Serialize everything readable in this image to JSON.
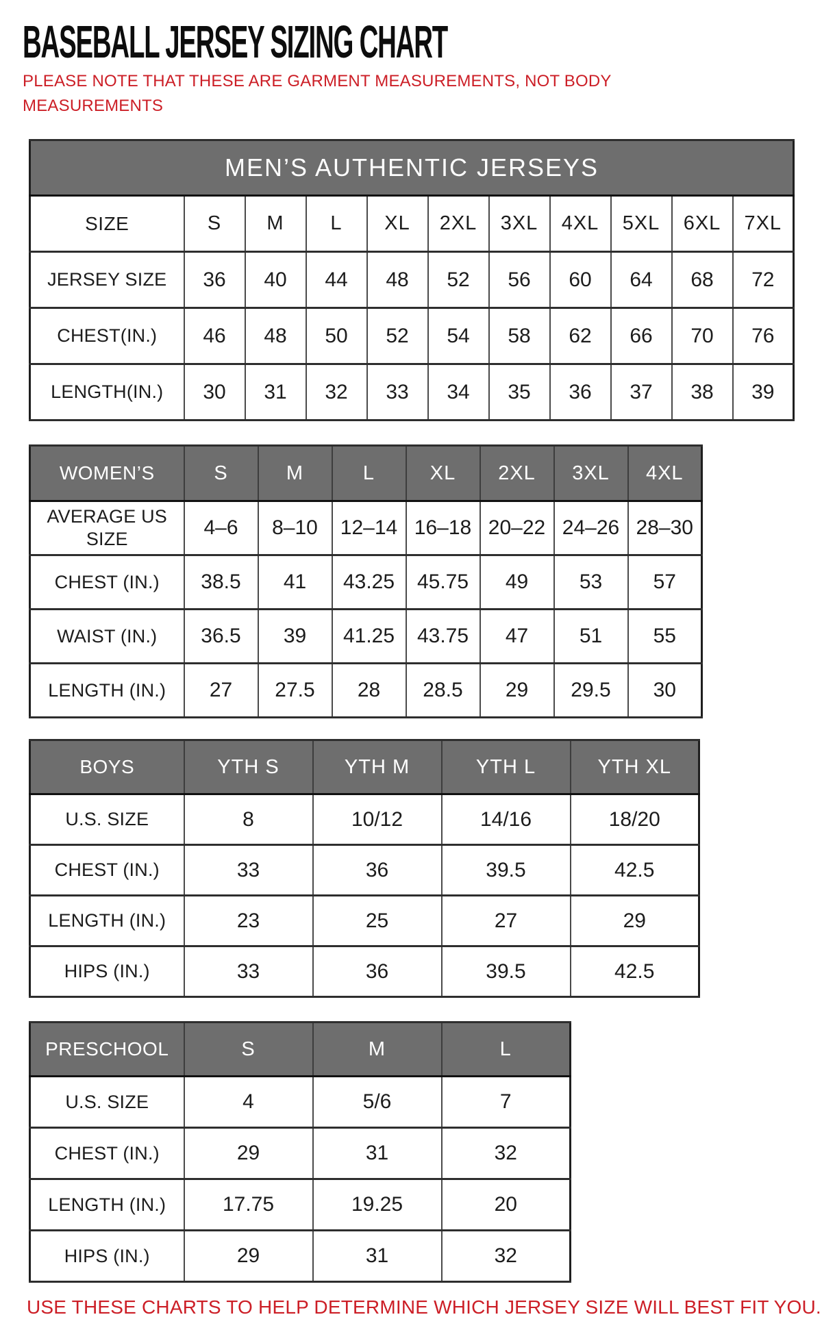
{
  "page": {
    "title": "BASEBALL JERSEY SIZING CHART",
    "note": "PLEASE NOTE THAT THESE ARE GARMENT MEASUREMENTS, NOT BODY MEASUREMENTS",
    "footer": "USE THESE CHARTS TO HELP DETERMINE WHICH JERSEY SIZE WILL BEST FIT YOU.",
    "colors": {
      "accent_red": "#cc1e26",
      "header_gray": "#6e6e6e"
    }
  },
  "tables": [
    {
      "id": "mens-authentic-jerseys",
      "banner": "MEN’S AUTHENTIC JERSEYS",
      "header": [
        "SIZE",
        "S",
        "M",
        "L",
        "XL",
        "2XL",
        "3XL",
        "4XL",
        "5XL",
        "6XL",
        "7XL"
      ],
      "rows": [
        {
          "label": "JERSEY SIZE",
          "values": [
            "36",
            "40",
            "44",
            "48",
            "52",
            "56",
            "60",
            "64",
            "68",
            "72"
          ]
        },
        {
          "label": "CHEST(IN.)",
          "values": [
            "46",
            "48",
            "50",
            "52",
            "54",
            "58",
            "62",
            "66",
            "70",
            "76"
          ]
        },
        {
          "label": "LENGTH(IN.)",
          "values": [
            "30",
            "31",
            "32",
            "33",
            "34",
            "35",
            "36",
            "37",
            "38",
            "39"
          ]
        }
      ]
    },
    {
      "id": "womens",
      "header": [
        "WOMEN’S",
        "S",
        "M",
        "L",
        "XL",
        "2XL",
        "3XL",
        "4XL"
      ],
      "rows": [
        {
          "label": "AVERAGE US SIZE",
          "values": [
            "4–6",
            "8–10",
            "12–14",
            "16–18",
            "20–22",
            "24–26",
            "28–30"
          ]
        },
        {
          "label": "CHEST (IN.)",
          "values": [
            "38.5",
            "41",
            "43.25",
            "45.75",
            "49",
            "53",
            "57"
          ]
        },
        {
          "label": "WAIST (IN.)",
          "values": [
            "36.5",
            "39",
            "41.25",
            "43.75",
            "47",
            "51",
            "55"
          ]
        },
        {
          "label": "LENGTH (IN.)",
          "values": [
            "27",
            "27.5",
            "28",
            "28.5",
            "29",
            "29.5",
            "30"
          ]
        }
      ]
    },
    {
      "id": "boys",
      "header": [
        "BOYS",
        "YTH S",
        "YTH M",
        "YTH L",
        "YTH XL"
      ],
      "rows": [
        {
          "label": "U.S. SIZE",
          "values": [
            "8",
            "10/12",
            "14/16",
            "18/20"
          ]
        },
        {
          "label": "CHEST (IN.)",
          "values": [
            "33",
            "36",
            "39.5",
            "42.5"
          ]
        },
        {
          "label": "LENGTH (IN.)",
          "values": [
            "23",
            "25",
            "27",
            "29"
          ]
        },
        {
          "label": "HIPS (IN.)",
          "values": [
            "33",
            "36",
            "39.5",
            "42.5"
          ]
        }
      ]
    },
    {
      "id": "preschool",
      "header": [
        "PRESCHOOL",
        "S",
        "M",
        "L"
      ],
      "rows": [
        {
          "label": "U.S. SIZE",
          "values": [
            "4",
            "5/6",
            "7"
          ]
        },
        {
          "label": "CHEST (IN.)",
          "values": [
            "29",
            "31",
            "32"
          ]
        },
        {
          "label": "LENGTH (IN.)",
          "values": [
            "17.75",
            "19.25",
            "20"
          ]
        },
        {
          "label": "HIPS (IN.)",
          "values": [
            "29",
            "31",
            "32"
          ]
        }
      ]
    }
  ]
}
